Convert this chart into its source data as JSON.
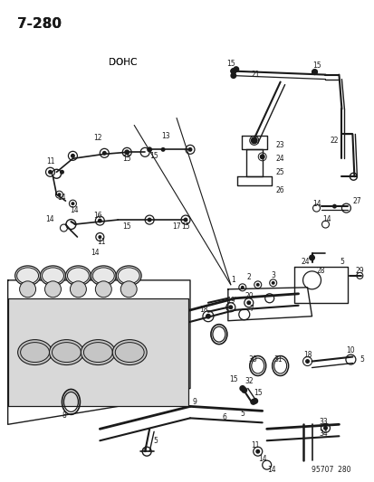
{
  "title": "7-280",
  "subtitle": "DOHC",
  "footer": "95707  280",
  "background_color": "#ffffff",
  "line_color": "#1a1a1a",
  "text_color": "#1a1a1a",
  "fig_width": 4.14,
  "fig_height": 5.33,
  "dpi": 100
}
